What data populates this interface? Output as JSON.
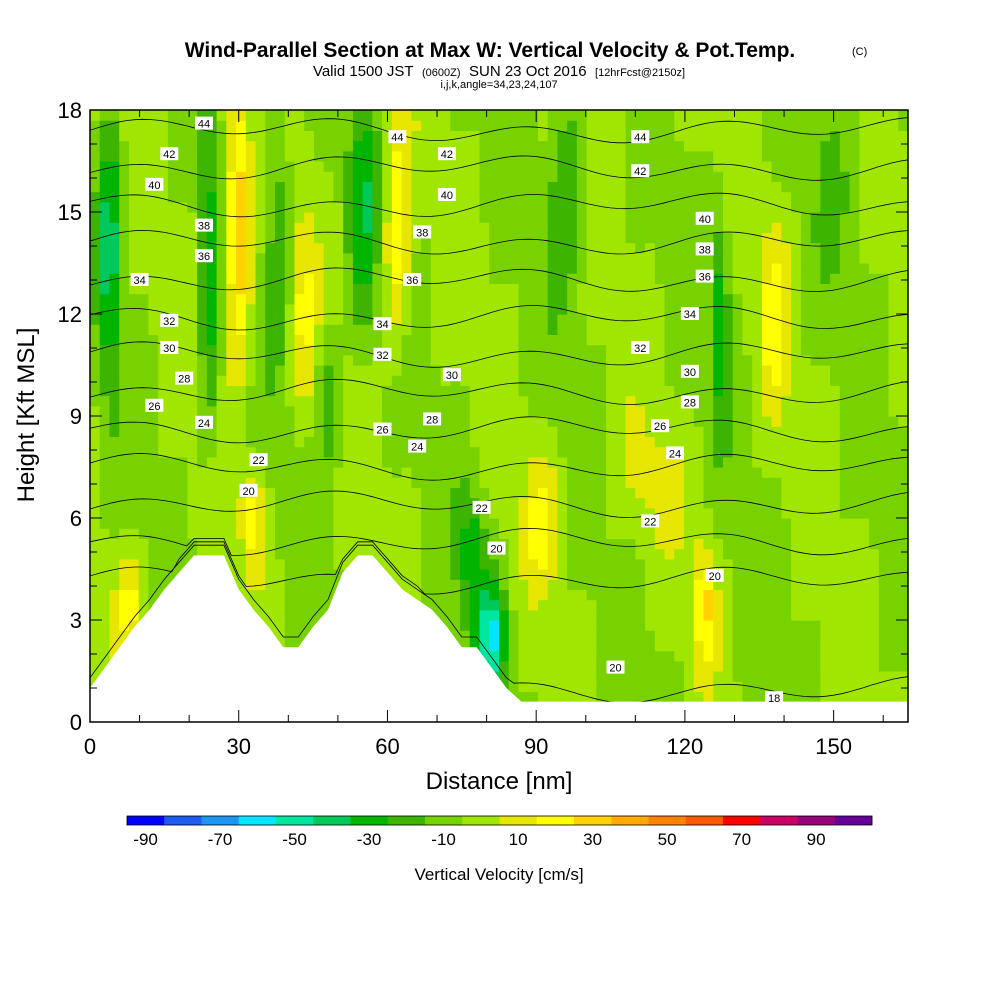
{
  "chart_data": {
    "type": "heatmap",
    "title": "Wind-Parallel Section at Max W: Vertical Velocity & Pot.Temp.",
    "title_mark": "(C)",
    "subtitle_parts": [
      "Valid 1500 JST",
      "(0600Z)",
      "SUN 23 Oct 2016",
      "[12hrFcst@2150z]"
    ],
    "params_line": "i,j,k,angle=34,23,24,107",
    "xlabel": "Distance [nm]",
    "ylabel": "Height [Kft MSL]",
    "xlim": [
      0,
      165
    ],
    "ylim": [
      0,
      18
    ],
    "xticks": [
      0,
      30,
      60,
      90,
      120,
      150
    ],
    "yticks": [
      0,
      3,
      6,
      9,
      12,
      15,
      18
    ],
    "colorbar": {
      "label": "Vertical Velocity [cm/s]",
      "tick_labels": [
        "-90",
        "-70",
        "-50",
        "-30",
        "-10",
        "10",
        "30",
        "50",
        "70",
        "90"
      ],
      "levels": [
        -90,
        -80,
        -70,
        -60,
        -50,
        -40,
        -30,
        -20,
        -10,
        0,
        10,
        20,
        30,
        40,
        50,
        60,
        70,
        80,
        90,
        100
      ],
      "colors": [
        "#0000ff",
        "#1e5bf0",
        "#1e96f0",
        "#00e6ff",
        "#00e6a0",
        "#00c85a",
        "#00b400",
        "#3cb400",
        "#78d200",
        "#a0e600",
        "#e6e600",
        "#ffff00",
        "#ffd200",
        "#ffaa00",
        "#ff8200",
        "#ff5a00",
        "#ff0000",
        "#c80064",
        "#960078",
        "#640096"
      ]
    },
    "w_features": [
      {
        "x": 4,
        "y": 14,
        "sx": 2.2,
        "sy": 4.0,
        "v": -35
      },
      {
        "x": 24,
        "y": 13,
        "sx": 2.0,
        "sy": 5.0,
        "v": -25
      },
      {
        "x": 30,
        "y": 14.5,
        "sx": 2.6,
        "sy": 3.8,
        "v": 45
      },
      {
        "x": 33,
        "y": 6.0,
        "sx": 2.5,
        "sy": 1.5,
        "v": 25
      },
      {
        "x": 38,
        "y": 15,
        "sx": 2.6,
        "sy": 3.5,
        "v": -20
      },
      {
        "x": 43,
        "y": 12,
        "sx": 2.6,
        "sy": 3.0,
        "v": 20
      },
      {
        "x": 55,
        "y": 15,
        "sx": 3.0,
        "sy": 3.5,
        "v": -25
      },
      {
        "x": 62,
        "y": 14.5,
        "sx": 2.6,
        "sy": 3.5,
        "v": 30
      },
      {
        "x": 48,
        "y": 9.5,
        "sx": 2.4,
        "sy": 2.0,
        "v": -20
      },
      {
        "x": 81,
        "y": 2.5,
        "sx": 2.8,
        "sy": 1.4,
        "v": -50
      },
      {
        "x": 77,
        "y": 5.0,
        "sx": 3.0,
        "sy": 2.0,
        "v": -25
      },
      {
        "x": 91,
        "y": 6.0,
        "sx": 3.5,
        "sy": 2.0,
        "v": 20
      },
      {
        "x": 96,
        "y": 16,
        "sx": 3.5,
        "sy": 3.5,
        "v": -20
      },
      {
        "x": 124,
        "y": 3.5,
        "sx": 2.2,
        "sy": 1.8,
        "v": 30
      },
      {
        "x": 127,
        "y": 12,
        "sx": 2.0,
        "sy": 3.0,
        "v": -25
      },
      {
        "x": 138,
        "y": 12,
        "sx": 3.0,
        "sy": 3.0,
        "v": 20
      },
      {
        "x": 8,
        "y": 3.5,
        "sx": 3.0,
        "sy": 1.5,
        "v": 20
      },
      {
        "x": 150,
        "y": 16,
        "sx": 4.0,
        "sy": 3.0,
        "v": -10
      },
      {
        "x": 112,
        "y": 7.0,
        "sx": 8.0,
        "sy": 2.0,
        "v": 10
      }
    ],
    "theta_contours": [
      {
        "level": 18,
        "label": "18"
      },
      {
        "level": 20,
        "label": "20"
      },
      {
        "level": 22,
        "label": "22"
      },
      {
        "level": 24,
        "label": "24"
      },
      {
        "level": 26,
        "label": "26"
      },
      {
        "level": 28,
        "label": "28"
      },
      {
        "level": 30,
        "label": "30"
      },
      {
        "level": 32,
        "label": "32"
      },
      {
        "level": 34,
        "label": "34"
      },
      {
        "level": 36,
        "label": "36"
      },
      {
        "level": 38,
        "label": "38"
      },
      {
        "level": 40,
        "label": "40"
      },
      {
        "level": 42,
        "label": "42"
      },
      {
        "level": 44,
        "label": "44"
      }
    ],
    "theta_labels": [
      {
        "x": 23,
        "y": 17.6,
        "text": "44"
      },
      {
        "x": 62,
        "y": 17.2,
        "text": "44"
      },
      {
        "x": 111,
        "y": 17.2,
        "text": "44"
      },
      {
        "x": 16,
        "y": 16.7,
        "text": "42"
      },
      {
        "x": 72,
        "y": 16.7,
        "text": "42"
      },
      {
        "x": 111,
        "y": 16.2,
        "text": "42"
      },
      {
        "x": 13,
        "y": 15.8,
        "text": "40"
      },
      {
        "x": 72,
        "y": 15.5,
        "text": "40"
      },
      {
        "x": 124,
        "y": 14.8,
        "text": "40"
      },
      {
        "x": 23,
        "y": 14.6,
        "text": "38"
      },
      {
        "x": 67,
        "y": 14.4,
        "text": "38"
      },
      {
        "x": 124,
        "y": 13.9,
        "text": "38"
      },
      {
        "x": 23,
        "y": 13.7,
        "text": "36"
      },
      {
        "x": 65,
        "y": 13.0,
        "text": "36"
      },
      {
        "x": 124,
        "y": 13.1,
        "text": "36"
      },
      {
        "x": 10,
        "y": 13.0,
        "text": "34"
      },
      {
        "x": 59,
        "y": 11.7,
        "text": "34"
      },
      {
        "x": 121,
        "y": 12.0,
        "text": "34"
      },
      {
        "x": 16,
        "y": 11.8,
        "text": "32"
      },
      {
        "x": 59,
        "y": 10.8,
        "text": "32"
      },
      {
        "x": 111,
        "y": 11.0,
        "text": "32"
      },
      {
        "x": 16,
        "y": 11.0,
        "text": "30"
      },
      {
        "x": 73,
        "y": 10.2,
        "text": "30"
      },
      {
        "x": 121,
        "y": 10.3,
        "text": "30"
      },
      {
        "x": 19,
        "y": 10.1,
        "text": "28"
      },
      {
        "x": 69,
        "y": 8.9,
        "text": "28"
      },
      {
        "x": 121,
        "y": 9.4,
        "text": "28"
      },
      {
        "x": 13,
        "y": 9.3,
        "text": "26"
      },
      {
        "x": 59,
        "y": 8.6,
        "text": "26"
      },
      {
        "x": 115,
        "y": 8.7,
        "text": "26"
      },
      {
        "x": 23,
        "y": 8.8,
        "text": "24"
      },
      {
        "x": 66,
        "y": 8.1,
        "text": "24"
      },
      {
        "x": 118,
        "y": 7.9,
        "text": "24"
      },
      {
        "x": 34,
        "y": 7.7,
        "text": "22"
      },
      {
        "x": 79,
        "y": 6.3,
        "text": "22"
      },
      {
        "x": 113,
        "y": 5.9,
        "text": "22"
      },
      {
        "x": 32,
        "y": 6.8,
        "text": "20"
      },
      {
        "x": 82,
        "y": 5.1,
        "text": "20"
      },
      {
        "x": 106,
        "y": 1.6,
        "text": "20"
      },
      {
        "x": 126,
        "y": 4.3,
        "text": "20"
      },
      {
        "x": 138,
        "y": 0.7,
        "text": "18"
      }
    ],
    "terrain": [
      [
        0,
        1.0
      ],
      [
        3,
        1.6
      ],
      [
        6,
        2.2
      ],
      [
        9,
        2.8
      ],
      [
        12,
        3.3
      ],
      [
        15,
        3.9
      ],
      [
        18,
        4.4
      ],
      [
        21,
        4.9
      ],
      [
        24,
        4.9
      ],
      [
        27,
        4.9
      ],
      [
        30,
        3.9
      ],
      [
        33,
        3.3
      ],
      [
        36,
        2.8
      ],
      [
        39,
        2.2
      ],
      [
        42,
        2.2
      ],
      [
        45,
        2.8
      ],
      [
        48,
        3.3
      ],
      [
        51,
        4.4
      ],
      [
        54,
        4.9
      ],
      [
        57,
        4.9
      ],
      [
        60,
        4.4
      ],
      [
        63,
        3.9
      ],
      [
        66,
        3.6
      ],
      [
        69,
        3.3
      ],
      [
        72,
        2.8
      ],
      [
        75,
        2.2
      ],
      [
        78,
        2.2
      ],
      [
        81,
        1.6
      ],
      [
        84,
        1.0
      ],
      [
        87,
        0.6
      ],
      [
        90,
        0.6
      ]
    ]
  }
}
